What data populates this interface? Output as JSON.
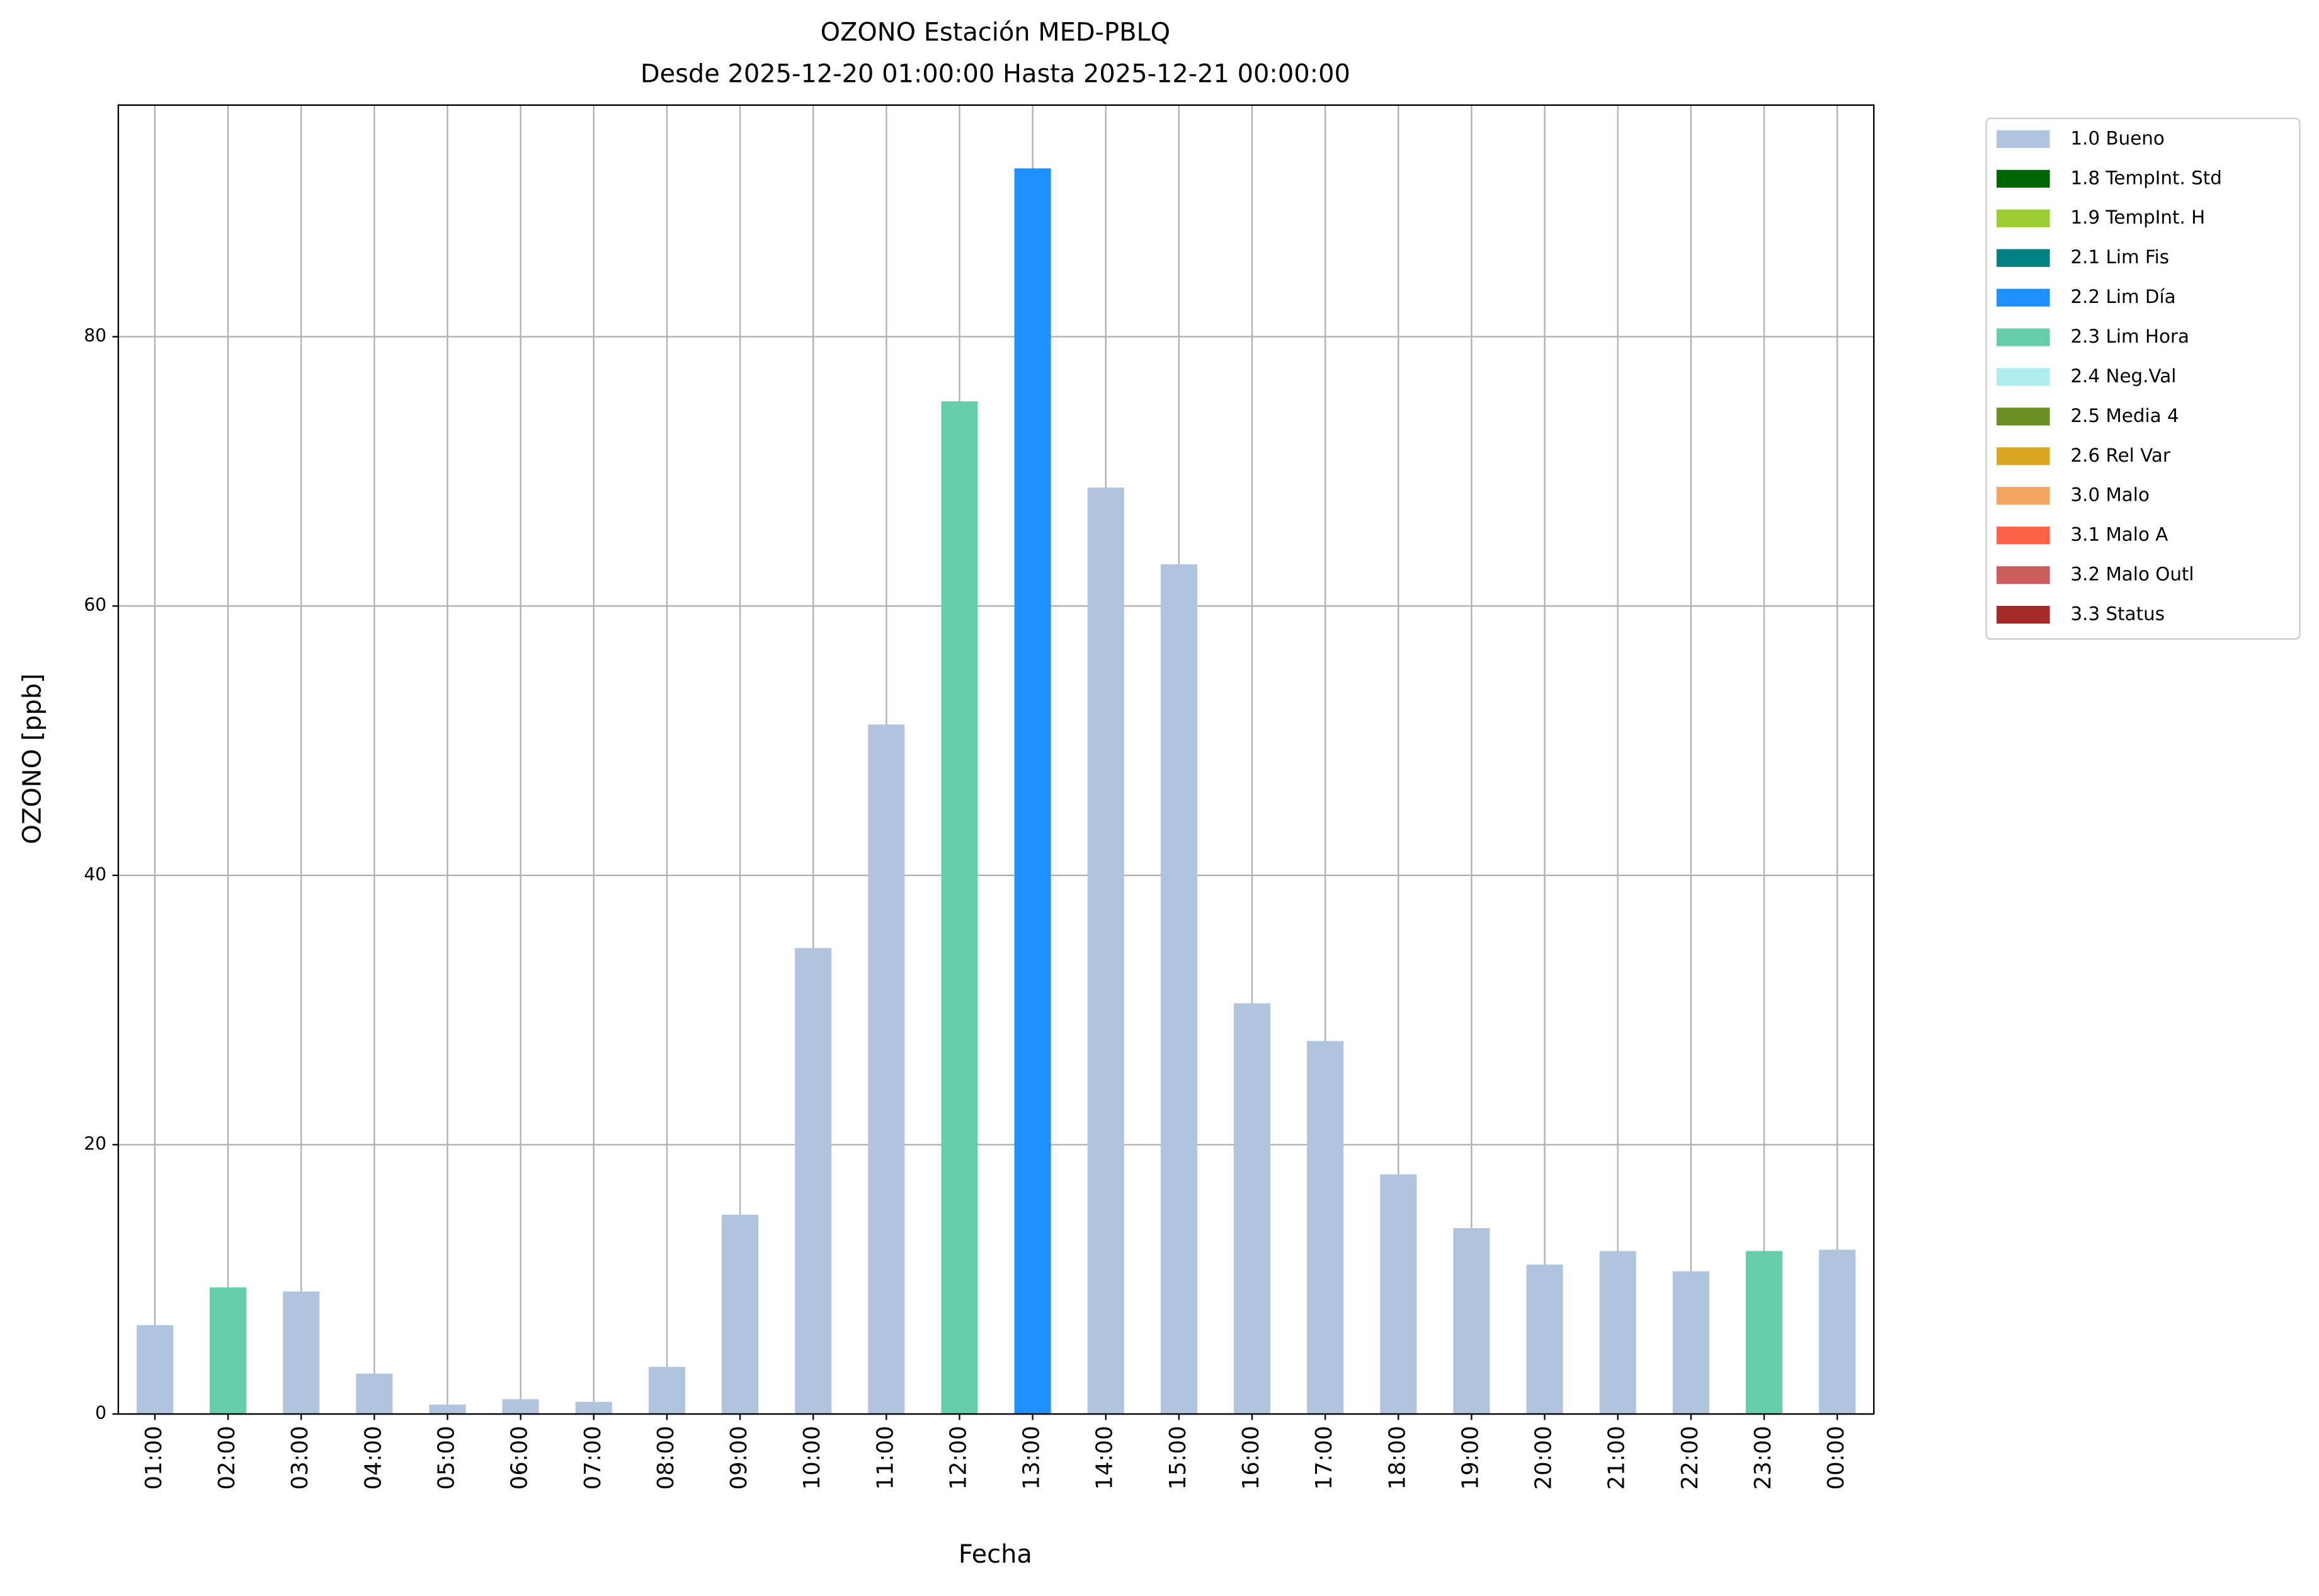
{
  "chart_data": {
    "type": "bar",
    "title": "OZONO Estación MED-PBLQ",
    "subtitle": "Desde 2025-12-20 01:00:00 Hasta 2025-12-21 00:00:00",
    "x_label": "Fecha",
    "y_label": "OZONO [ppb]",
    "categories": [
      "01:00",
      "02:00",
      "03:00",
      "04:00",
      "05:00",
      "06:00",
      "07:00",
      "08:00",
      "09:00",
      "10:00",
      "11:00",
      "12:00",
      "13:00",
      "14:00",
      "15:00",
      "16:00",
      "17:00",
      "18:00",
      "19:00",
      "20:00",
      "21:00",
      "22:00",
      "23:00",
      "00:00"
    ],
    "values": [
      6.6,
      9.4,
      9.1,
      3.0,
      0.7,
      1.1,
      0.9,
      3.5,
      14.8,
      34.6,
      51.2,
      75.2,
      92.5,
      68.8,
      63.1,
      30.5,
      27.7,
      17.8,
      13.8,
      11.1,
      12.1,
      10.6,
      12.1,
      12.2
    ],
    "colors": [
      "#b0c4de",
      "#66cdaa",
      "#b0c4de",
      "#b0c4de",
      "#b0c4de",
      "#b0c4de",
      "#b0c4de",
      "#b0c4de",
      "#b0c4de",
      "#b0c4de",
      "#b0c4de",
      "#66cdaa",
      "#1e90ff",
      "#b0c4de",
      "#b0c4de",
      "#b0c4de",
      "#b0c4de",
      "#b0c4de",
      "#b0c4de",
      "#b0c4de",
      "#b0c4de",
      "#b0c4de",
      "#66cdaa",
      "#b0c4de"
    ],
    "legend": [
      {
        "name": "1.0 Bueno",
        "color": "#b0c4de"
      },
      {
        "name": "1.8 TempInt. Std",
        "color": "#006400"
      },
      {
        "name": "1.9 TempInt. H",
        "color": "#9acd32"
      },
      {
        "name": "2.1 Lim Fis",
        "color": "#008080"
      },
      {
        "name": "2.2 Lim Día",
        "color": "#1e90ff"
      },
      {
        "name": "2.3 Lim Hora",
        "color": "#66cdaa"
      },
      {
        "name": "2.4 Neg.Val",
        "color": "#afeeee"
      },
      {
        "name": "2.5 Media 4",
        "color": "#6b8e23"
      },
      {
        "name": "2.6 Rel Var",
        "color": "#daa520"
      },
      {
        "name": "3.0 Malo",
        "color": "#f4a460"
      },
      {
        "name": "3.1 Malo A",
        "color": "#ff6347"
      },
      {
        "name": "3.2 Malo Outl",
        "color": "#cd5c5c"
      },
      {
        "name": "3.3 Status",
        "color": "#a52a2a"
      }
    ],
    "legend_position": "outside-upper-right",
    "ylim": [
      0,
      97.2
    ],
    "yticks": [
      0,
      20,
      40,
      60,
      80
    ],
    "grid": true
  }
}
